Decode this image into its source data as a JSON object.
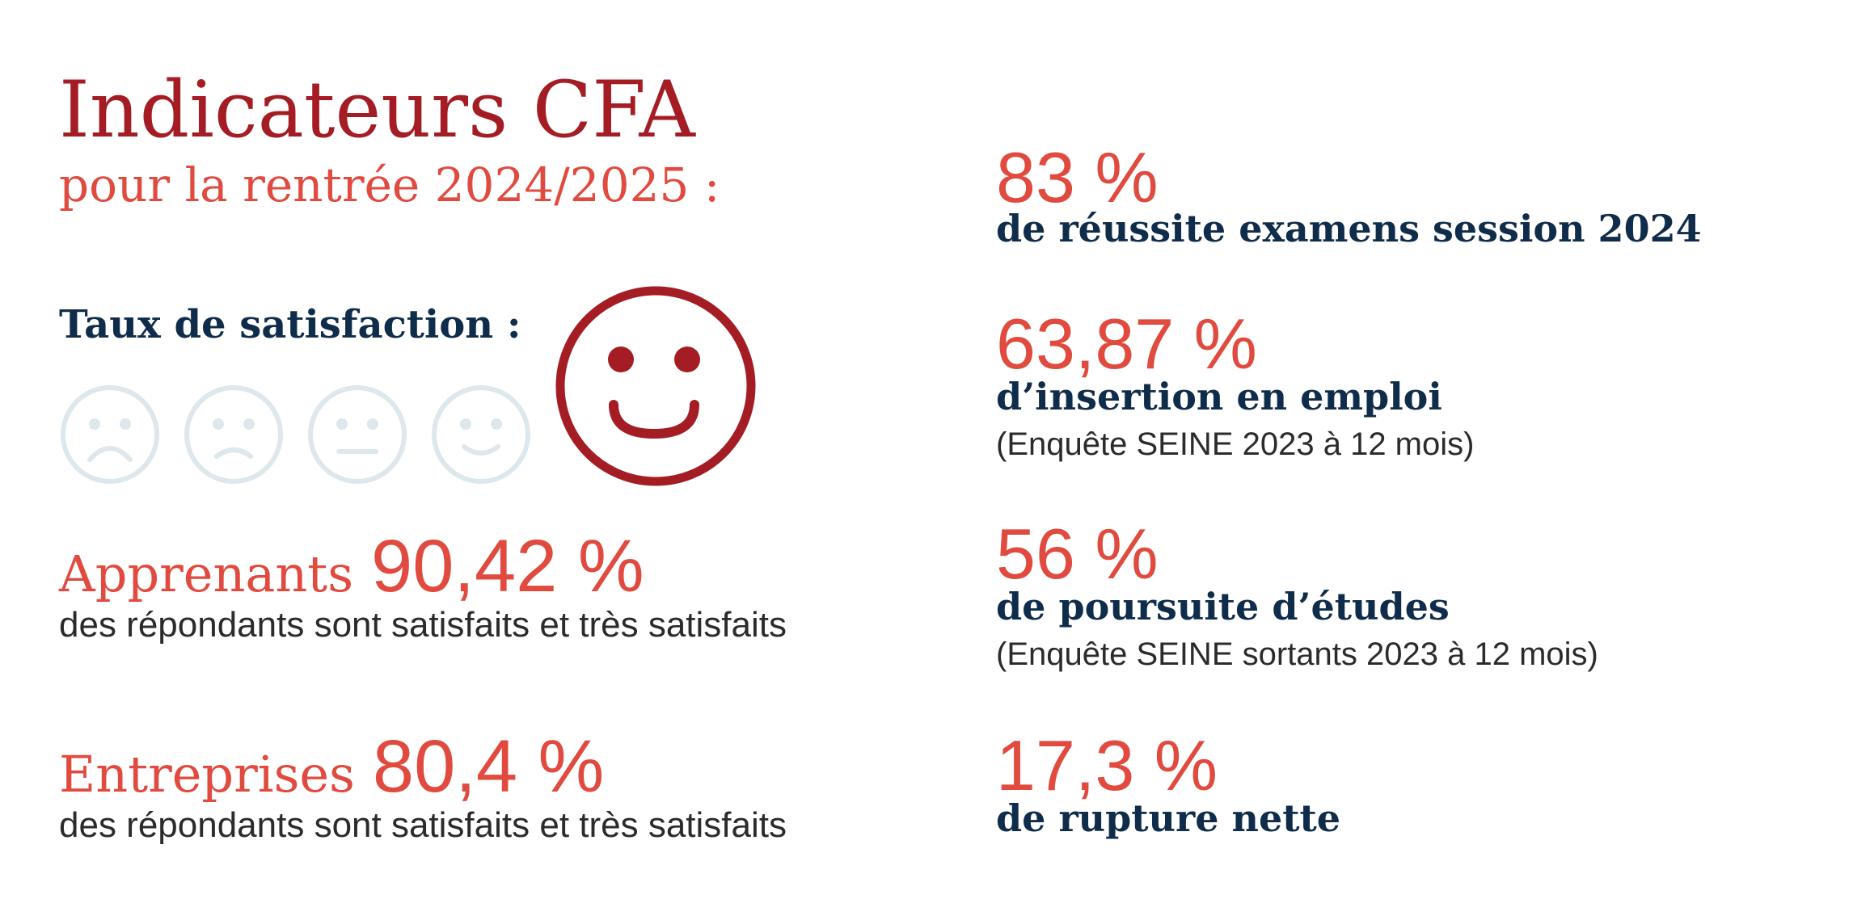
{
  "colors": {
    "dark_red": "#a51d24",
    "accent_red": "#e04a3f",
    "navy": "#0f2d4a",
    "faded_face": "#dde7ec",
    "text_grey": "#2b2b2b"
  },
  "title": {
    "main": "Indicateurs CFA",
    "sub": "pour la rentrée 2024/2025 :"
  },
  "satisfaction": {
    "label": "Taux de satisfaction :",
    "scale": [
      {
        "icon": "very-sad-face-icon",
        "selected": false
      },
      {
        "icon": "sad-face-icon",
        "selected": false
      },
      {
        "icon": "neutral-face-icon",
        "selected": false
      },
      {
        "icon": "smile-face-icon",
        "selected": false
      },
      {
        "icon": "big-smile-face-icon",
        "selected": true
      }
    ]
  },
  "apprenants": {
    "label": "Apprenants",
    "value": "90,42 %",
    "description": "des répondants sont satisfaits et très satisfaits"
  },
  "entreprises": {
    "label": "Entreprises",
    "value": "80,4 %",
    "description": "des répondants sont satisfaits et très satisfaits"
  },
  "indicators": [
    {
      "value": "83 %",
      "label": "de réussite examens session 2024",
      "note": ""
    },
    {
      "value": "63,87 %",
      "label": "d’insertion en emploi",
      "note": "(Enquête SEINE 2023 à 12 mois)"
    },
    {
      "value": "56 %",
      "label": "de poursuite d’études",
      "note": "(Enquête SEINE sortants 2023 à 12 mois)"
    },
    {
      "value": "17,3 %",
      "label": "de rupture nette",
      "note": ""
    }
  ]
}
